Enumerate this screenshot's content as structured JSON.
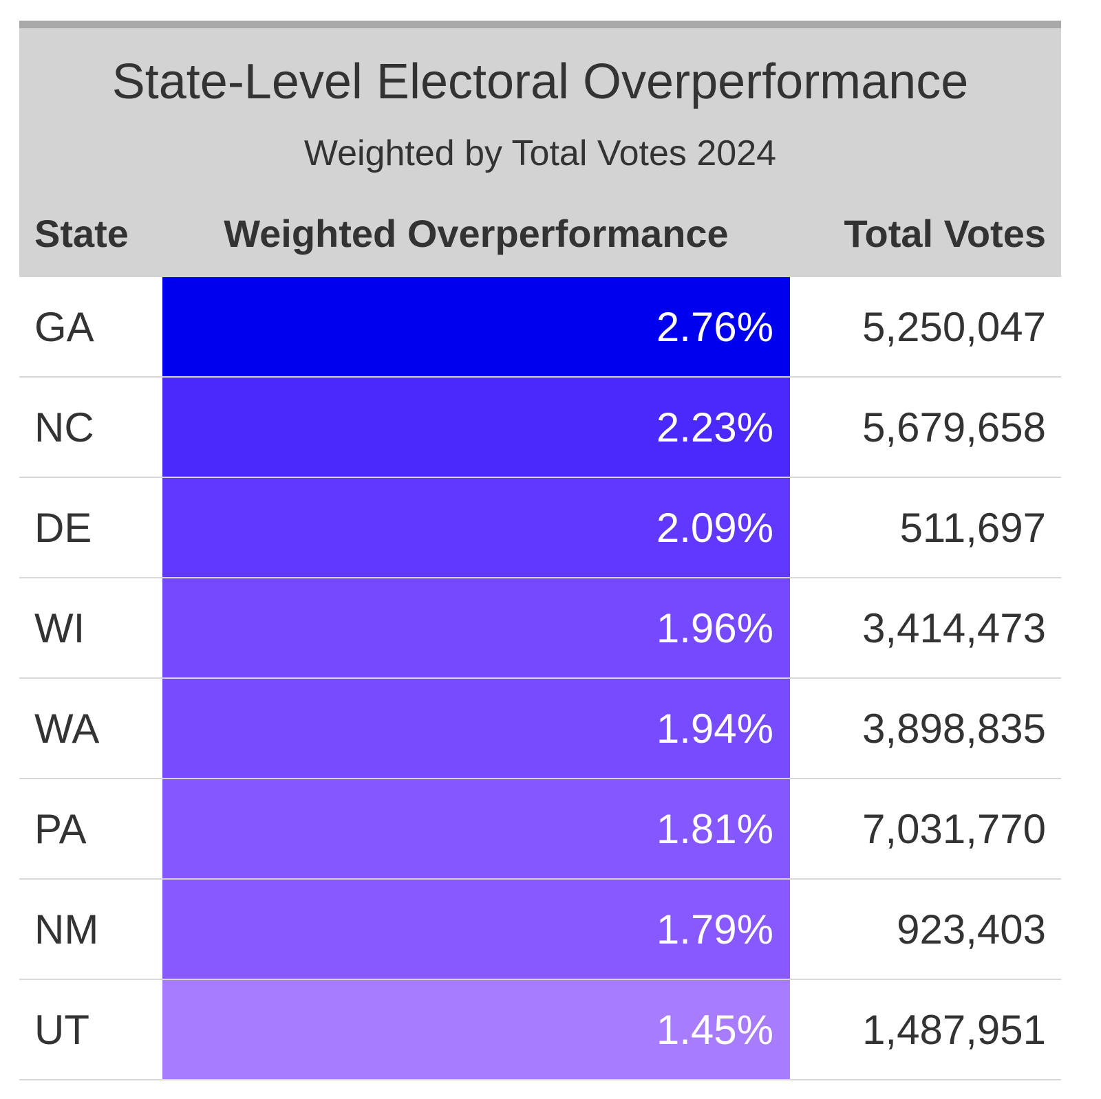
{
  "chart_data": {
    "type": "table",
    "title": "State-Level Electoral Overperformance",
    "subtitle": "Weighted by Total Votes 2024",
    "columns": [
      "State",
      "Weighted Overperformance",
      "Total Votes"
    ],
    "rows": [
      {
        "state": "GA",
        "overperformance": "2.76%",
        "total_votes": "5,250,047",
        "fill": "#0000ee"
      },
      {
        "state": "NC",
        "overperformance": "2.23%",
        "total_votes": "5,679,658",
        "fill": "#4b29fc"
      },
      {
        "state": "DE",
        "overperformance": "2.09%",
        "total_votes": "511,697",
        "fill": "#6138fd"
      },
      {
        "state": "WI",
        "overperformance": "1.96%",
        "total_votes": "3,414,473",
        "fill": "#7549fe"
      },
      {
        "state": "WA",
        "overperformance": "1.94%",
        "total_votes": "3,898,835",
        "fill": "#774bfe"
      },
      {
        "state": "PA",
        "overperformance": "1.81%",
        "total_votes": "7,031,770",
        "fill": "#8557fe"
      },
      {
        "state": "NM",
        "overperformance": "1.79%",
        "total_votes": "923,403",
        "fill": "#8759fe"
      },
      {
        "state": "UT",
        "overperformance": "1.45%",
        "total_votes": "1,487,951",
        "fill": "#a77dfd"
      }
    ]
  }
}
